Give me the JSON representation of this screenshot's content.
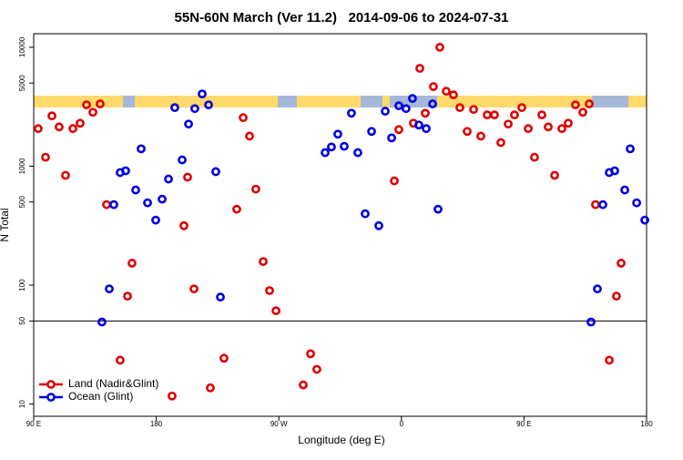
{
  "chart_data": {
    "type": "scatter",
    "title": "55N-60N March (Ver 11.2)   2014-09-06 to 2024-07-31",
    "x_label": "Longitude (deg E)",
    "y_label": "N Total",
    "log_y": true,
    "legend": "bottom-left",
    "hline": 50,
    "xlim": [
      90,
      540
    ],
    "ylim": [
      7.9,
      13000
    ],
    "xticks": [
      {
        "value": 90,
        "label": "90 E"
      },
      180,
      {
        "value": 270,
        "label": "90 W"
      },
      {
        "value": 360,
        "label": "0"
      },
      {
        "value": 450,
        "label": "90 E"
      },
      {
        "value": 540,
        "label": "180"
      }
    ],
    "yticks": [
      10,
      50,
      100,
      500,
      1000,
      5000,
      10000
    ],
    "series": [
      {
        "name": "Land (Nadir&Glint)",
        "color": "#e00000",
        "x": [
          93.3,
          98.7,
          103.4,
          108.7,
          113.4,
          118.8,
          124.1,
          128.8,
          133.5,
          138.8,
          143.5,
          153.5,
          158.9,
          162.2,
          191.6,
          200.3,
          203,
          207.7,
          219.7,
          229.7,
          239.1,
          243.8,
          248.5,
          253.1,
          258.5,
          263.2,
          267.9,
          287.9,
          293.3,
          297.9,
          354.8,
          358.1,
          368.8,
          373.5,
          377.5,
          383.5,
          388.2,
          392.9,
          398.2,
          402.9,
          408.3,
          413,
          418.3,
          423,
          428.3,
          433,
          438.4,
          443,
          448.4,
          453.1,
          457.7,
          463.1,
          467.8,
          472.5,
          477.8,
          482.5,
          487.8,
          493.2,
          497.9,
          502.5,
          512.6,
          517.9,
          521.3
        ],
        "values": [
          2070,
          1190,
          2650,
          2140,
          838,
          2070,
          2300,
          3280,
          2840,
          3340,
          475,
          23.4,
          80.8,
          153,
          11.7,
          316,
          809,
          93,
          13.7,
          24.3,
          435,
          2560,
          1790,
          642,
          158,
          90,
          60.9,
          14.5,
          26.5,
          19.6,
          753,
          2030,
          2300,
          6650,
          2790,
          4670,
          10000,
          4270,
          3980,
          3110,
          1960,
          3000,
          1790,
          2700,
          2700,
          1580,
          2260,
          2700,
          3110,
          2070,
          1190,
          2700,
          2140,
          838,
          2070,
          2300,
          3280,
          2840,
          3340,
          475,
          23.4,
          80.8,
          153
        ]
      },
      {
        "name": "Ocean (Glint)",
        "color": "#0000e0",
        "x": [
          140.1,
          145.5,
          148.8,
          153.5,
          157.5,
          164.9,
          168.9,
          173.6,
          179.6,
          184.3,
          189,
          193.6,
          199,
          203.7,
          208.3,
          213.7,
          218.4,
          223.7,
          227.1,
          304,
          308.6,
          313.3,
          318,
          323.3,
          328,
          333.4,
          338.1,
          343.4,
          348.1,
          352.8,
          358.1,
          363.4,
          368.1,
          372.8,
          378.2,
          382.9,
          386.9,
          499.2,
          503.9,
          507.9,
          512.6,
          516.6,
          524,
          528,
          532.7,
          538.7
        ],
        "values": [
          49,
          93,
          475,
          884,
          915,
          631,
          1400,
          492,
          352,
          528,
          780,
          3110,
          1130,
          2260,
          3050,
          4050,
          3280,
          900,
          79.4,
          1300,
          1450,
          1860,
          1470,
          2790,
          1300,
          398,
          1960,
          316,
          2900,
          1730,
          3220,
          3050,
          3710,
          2220,
          2070,
          3340,
          435,
          49,
          93,
          475,
          884,
          915,
          631,
          1400,
          492,
          352
        ]
      }
    ]
  }
}
